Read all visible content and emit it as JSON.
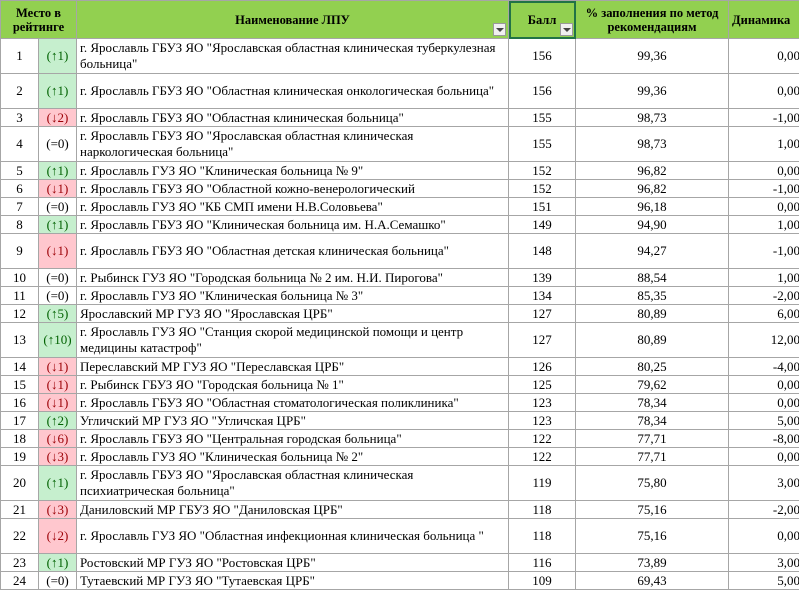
{
  "header": {
    "rank": "Место в рейтинге",
    "name": "Наименование ЛПУ",
    "score": "Балл",
    "percent": "% заполнения по метод рекомендациям",
    "dynamics": "Динамика"
  },
  "table": {
    "rows": [
      [
        1,
        "(↑1)",
        "г. Ярославль ГБУЗ ЯО \"Ярославская областная клиническая туберкулезная больница\"",
        156,
        "99,36",
        "0,00"
      ],
      [
        2,
        "(↑1)",
        "г. Ярославль ГБУЗ ЯО \"Областная клиническая онкологическая больница\"",
        156,
        "99,36",
        "0,00"
      ],
      [
        3,
        "(↓2)",
        "г. Ярославль ГБУЗ ЯО \"Областная клиническая больница\"",
        155,
        "98,73",
        "-1,00"
      ],
      [
        4,
        "(=0)",
        "г. Ярославль ГБУЗ ЯО \"Ярославская областная клиническая наркологическая больница\"",
        155,
        "98,73",
        "1,00"
      ],
      [
        5,
        "(↑1)",
        "г. Ярославль ГУЗ ЯО \"Клиническая больница № 9\"",
        152,
        "96,82",
        "0,00"
      ],
      [
        6,
        "(↓1)",
        "г. Ярославль ГБУЗ ЯО \"Областной кожно-венерологический",
        152,
        "96,82",
        "-1,00"
      ],
      [
        7,
        "(=0)",
        "г. Ярославль ГУЗ ЯО \"КБ СМП имени Н.В.Соловьева\"",
        151,
        "96,18",
        "0,00"
      ],
      [
        8,
        "(↑1)",
        "г. Ярославль ГБУЗ ЯО \"Клиническая больница им. Н.А.Семашко\"",
        149,
        "94,90",
        "1,00"
      ],
      [
        9,
        "(↓1)",
        "г. Ярославль ГБУЗ ЯО \"Областная детская клиническая больница\"",
        148,
        "94,27",
        "-1,00"
      ],
      [
        10,
        "(=0)",
        "г. Рыбинск ГУЗ ЯО \"Городская больница № 2 им. Н.И. Пирогова\"",
        139,
        "88,54",
        "1,00"
      ],
      [
        11,
        "(=0)",
        "г. Ярославль ГУЗ ЯО \"Клиническая больница № 3\"",
        134,
        "85,35",
        "-2,00"
      ],
      [
        12,
        "(↑5)",
        "Ярославский МР ГУЗ ЯО \"Ярославская ЦРБ\"",
        127,
        "80,89",
        "6,00"
      ],
      [
        13,
        "(↑10)",
        "г. Ярославль ГУЗ ЯО \"Станция скорой медицинской помощи и центр медицины катастроф\"",
        127,
        "80,89",
        "12,00"
      ],
      [
        14,
        "(↓1)",
        "Переславский МР ГУЗ ЯО \"Переславская ЦРБ\"",
        126,
        "80,25",
        "-4,00"
      ],
      [
        15,
        "(↓1)",
        "г. Рыбинск ГБУЗ ЯО \"Городская больница № 1\"",
        125,
        "79,62",
        "0,00"
      ],
      [
        16,
        "(↓1)",
        "г. Ярославль ГБУЗ ЯО \"Областная стоматологическая поликлиника\"",
        123,
        "78,34",
        "0,00"
      ],
      [
        17,
        "(↑2)",
        "Угличский МР ГУЗ ЯО \"Угличская ЦРБ\"",
        123,
        "78,34",
        "5,00"
      ],
      [
        18,
        "(↓6)",
        "г. Ярославль ГБУЗ ЯО \"Центральная городская больница\"",
        122,
        "77,71",
        "-8,00"
      ],
      [
        19,
        "(↓3)",
        "г. Ярославль ГУЗ ЯО \"Клиническая больница № 2\"",
        122,
        "77,71",
        "0,00"
      ],
      [
        20,
        "(↑1)",
        "г. Ярославль ГБУЗ ЯО \"Ярославская областная клиническая психиатрическая больница\"",
        119,
        "75,80",
        "3,00"
      ],
      [
        21,
        "(↓3)",
        "Даниловский МР ГБУЗ ЯО \"Даниловская ЦРБ\"",
        118,
        "75,16",
        "-2,00"
      ],
      [
        22,
        "(↓2)",
        "г. Ярославль ГУЗ ЯО \"Областная инфекционная клиническая больница \"",
        118,
        "75,16",
        "0,00"
      ],
      [
        23,
        "(↑1)",
        "Ростовский МР ГУЗ ЯО \"Ростовская ЦРБ\"",
        116,
        "73,89",
        "3,00"
      ],
      [
        24,
        "(=0)",
        "Тутаевский МР ГУЗ ЯО \"Тутаевская ЦРБ\"",
        109,
        "69,43",
        "5,00"
      ]
    ]
  }
}
